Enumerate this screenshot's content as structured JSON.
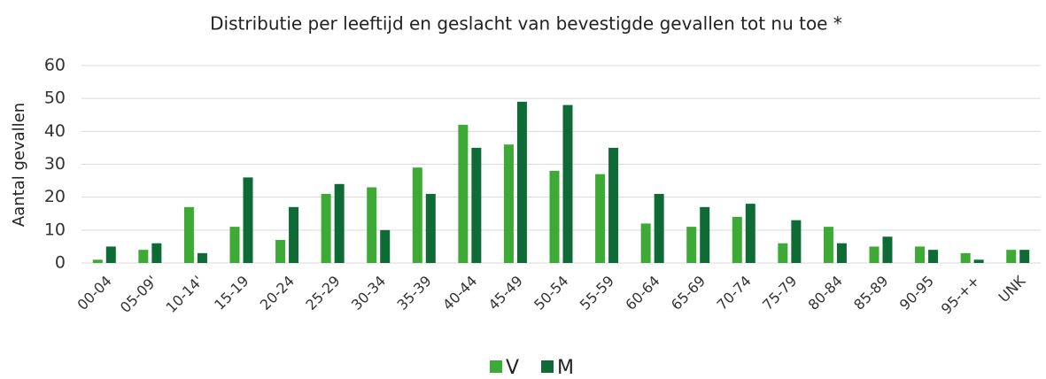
{
  "chart_data": {
    "type": "bar",
    "title": "Distributie per leeftijd en geslacht van bevestigde gevallen tot nu toe *",
    "y_label": "Aantal gevallen",
    "categories": [
      "00-04",
      "05-09'",
      "10-14'",
      "15-19",
      "20-24",
      "25-29",
      "30-34",
      "35-39",
      "40-44",
      "45-49",
      "50-54",
      "55-59",
      "60-64",
      "65-69",
      "70-74",
      "75-79",
      "80-84",
      "85-89",
      "90-95",
      "95-++",
      "UNK"
    ],
    "series": [
      {
        "name": "V",
        "color": "#3daa35",
        "values": [
          1,
          4,
          17,
          11,
          7,
          21,
          23,
          29,
          42,
          36,
          28,
          27,
          12,
          11,
          14,
          6,
          11,
          5,
          5,
          3,
          4
        ]
      },
      {
        "name": "M",
        "color": "#0f6b35",
        "values": [
          5,
          6,
          3,
          26,
          17,
          24,
          10,
          21,
          35,
          49,
          48,
          35,
          21,
          17,
          18,
          13,
          6,
          8,
          4,
          1,
          4
        ]
      }
    ],
    "ylim": [
      0,
      60
    ],
    "yticks": [
      0,
      10,
      20,
      30,
      40,
      50,
      60
    ],
    "grid": true,
    "legend": "bottom"
  }
}
